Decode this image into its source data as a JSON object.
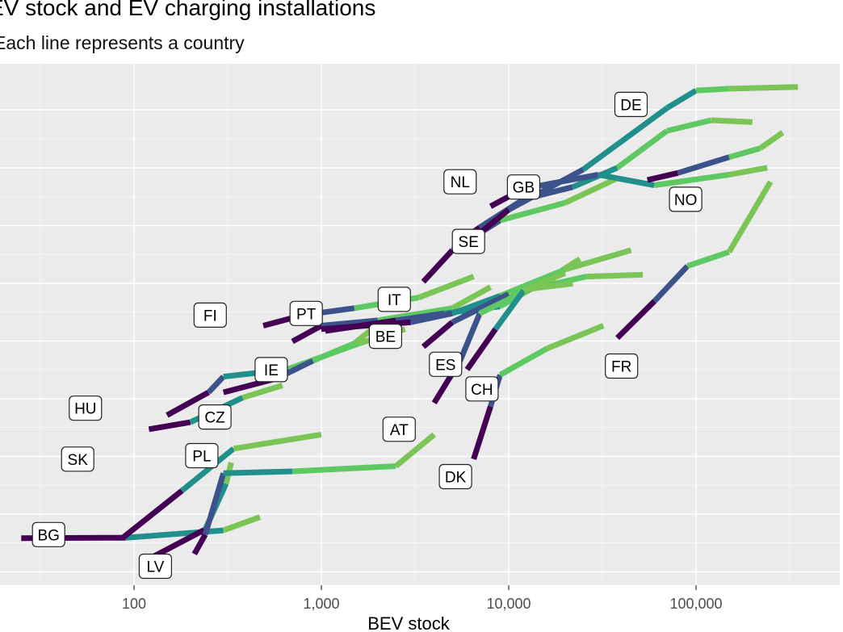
{
  "title": "EV stock and EV charging installations",
  "subtitle": "Each line represents a country",
  "chart_data": {
    "type": "line",
    "title": "EV stock and EV charging installations",
    "subtitle": "Each line represents a country",
    "xlabel": "BEV stock",
    "ylabel": "",
    "x_scale": "log10",
    "xlim": [
      19,
      600000
    ],
    "x_ticks": [
      100,
      1000,
      10000,
      100000
    ],
    "x_tick_labels": [
      "100",
      "1,000",
      "10,000",
      "100,000"
    ],
    "y_tick_labels": [],
    "grid": true,
    "legend": "none",
    "color_scale": [
      "#440154",
      "#3b528b",
      "#21908c",
      "#5ec962",
      "#7ac555"
    ],
    "series": [
      {
        "name": "BG",
        "points": [
          [
            25,
            0.95
          ],
          [
            90,
            0.96
          ],
          [
            300,
            1.17
          ],
          [
            470,
            1.55
          ]
        ]
      },
      {
        "name": "LV",
        "points": [
          [
            110,
            0.25
          ],
          [
            240,
            1.2
          ],
          [
            310,
            2.5
          ],
          [
            330,
            3.1
          ]
        ]
      },
      {
        "name": "PL",
        "points": [
          [
            210,
            0.5
          ],
          [
            240,
            1.05
          ],
          [
            300,
            2.8
          ],
          [
            700,
            2.85
          ],
          [
            2500,
            3.0
          ],
          [
            4000,
            3.9
          ]
        ]
      },
      {
        "name": "SK",
        "points": [
          [
            88,
            0.98
          ],
          [
            180,
            2.3
          ],
          [
            340,
            3.5
          ],
          [
            1000,
            3.9
          ]
        ]
      },
      {
        "name": "HU",
        "points": [
          [
            120,
            4.05
          ],
          [
            200,
            4.25
          ],
          [
            380,
            4.95
          ],
          [
            620,
            5.3
          ]
        ]
      },
      {
        "name": "CZ",
        "points": [
          [
            150,
            4.45
          ],
          [
            250,
            5.1
          ],
          [
            300,
            5.55
          ],
          [
            650,
            5.75
          ],
          [
            1600,
            6.5
          ],
          [
            2800,
            6.9
          ]
        ]
      },
      {
        "name": "IE",
        "points": [
          [
            300,
            5.1
          ],
          [
            580,
            5.5
          ],
          [
            900,
            6.0
          ],
          [
            1500,
            6.5
          ],
          [
            2200,
            7.2
          ]
        ]
      },
      {
        "name": "FI",
        "points": [
          [
            490,
            7.0
          ],
          [
            800,
            7.3
          ],
          [
            1500,
            7.5
          ],
          [
            3300,
            7.8
          ],
          [
            6500,
            8.4
          ]
        ]
      },
      {
        "name": "PT",
        "points": [
          [
            700,
            6.55
          ],
          [
            1000,
            7.0
          ],
          [
            2000,
            7.15
          ],
          [
            5000,
            7.5
          ],
          [
            8000,
            8.1
          ]
        ]
      },
      {
        "name": "BE",
        "points": [
          [
            1050,
            6.85
          ],
          [
            2500,
            7.15
          ],
          [
            4500,
            7.35
          ],
          [
            9000,
            7.55
          ],
          [
            16000,
            8.3
          ],
          [
            24000,
            8.9
          ]
        ]
      },
      {
        "name": "IT",
        "points": [
          [
            1000,
            6.9
          ],
          [
            3000,
            7.1
          ],
          [
            5000,
            7.35
          ],
          [
            9000,
            7.85
          ],
          [
            20000,
            8.6
          ],
          [
            45000,
            9.15
          ]
        ]
      },
      {
        "name": "ES",
        "points": [
          [
            3500,
            6.4
          ],
          [
            5000,
            7.1
          ],
          [
            10000,
            7.9
          ],
          [
            26000,
            8.4
          ],
          [
            52000,
            8.45
          ]
        ]
      },
      {
        "name": "AT",
        "points": [
          [
            4000,
            4.8
          ],
          [
            5500,
            6.0
          ],
          [
            7000,
            7.35
          ],
          [
            13000,
            8.05
          ],
          [
            22000,
            8.2
          ]
        ]
      },
      {
        "name": "SE",
        "points": [
          [
            3500,
            8.25
          ],
          [
            5000,
            9.15
          ],
          [
            9000,
            10.0
          ],
          [
            20000,
            10.5
          ],
          [
            38000,
            11.2
          ]
        ]
      },
      {
        "name": "NL",
        "points": [
          [
            5200,
            9.3
          ],
          [
            7000,
            9.8
          ],
          [
            12000,
            10.6
          ],
          [
            22000,
            10.95
          ],
          [
            38000,
            11.5
          ],
          [
            70000,
            12.55
          ],
          [
            120000,
            12.85
          ],
          [
            200000,
            12.8
          ]
        ]
      },
      {
        "name": "GB",
        "points": [
          [
            8000,
            10.4
          ],
          [
            12000,
            10.9
          ],
          [
            30000,
            11.3
          ],
          [
            60000,
            11.0
          ],
          [
            150000,
            11.3
          ],
          [
            240000,
            11.5
          ]
        ]
      },
      {
        "name": "DE",
        "points": [
          [
            6500,
            9.5
          ],
          [
            10000,
            10.3
          ],
          [
            25000,
            11.45
          ],
          [
            70000,
            13.2
          ],
          [
            100000,
            13.7
          ],
          [
            150000,
            13.75
          ],
          [
            350000,
            13.8
          ]
        ]
      },
      {
        "name": "NO",
        "points": [
          [
            55000,
            11.15
          ],
          [
            80000,
            11.35
          ],
          [
            150000,
            11.8
          ],
          [
            220000,
            12.05
          ],
          [
            290000,
            12.5
          ]
        ]
      },
      {
        "name": "CH",
        "points": [
          [
            6500,
            3.2
          ],
          [
            8000,
            4.7
          ],
          [
            9000,
            5.6
          ],
          [
            16000,
            6.35
          ],
          [
            32000,
            7.0
          ]
        ]
      },
      {
        "name": "DK",
        "points": [
          [
            6000,
            5.75
          ],
          [
            8500,
            6.9
          ],
          [
            12000,
            8.0
          ],
          [
            20000,
            8.5
          ]
        ]
      },
      {
        "name": "FR",
        "points": [
          [
            38000,
            6.65
          ],
          [
            60000,
            7.7
          ],
          [
            90000,
            8.7
          ],
          [
            150000,
            9.1
          ],
          [
            250000,
            11.1
          ]
        ]
      }
    ],
    "labels": [
      {
        "text": "BG",
        "x": 35,
        "y": 1.05
      },
      {
        "text": "LV",
        "x": 130,
        "y": 0.15
      },
      {
        "text": "PL",
        "x": 230,
        "y": 3.3
      },
      {
        "text": "SK",
        "x": 50,
        "y": 3.2
      },
      {
        "text": "HU",
        "x": 55,
        "y": 4.65
      },
      {
        "text": "CZ",
        "x": 270,
        "y": 4.4
      },
      {
        "text": "IE",
        "x": 540,
        "y": 5.75
      },
      {
        "text": "FI",
        "x": 255,
        "y": 7.3
      },
      {
        "text": "PT",
        "x": 830,
        "y": 7.35
      },
      {
        "text": "BE",
        "x": 2200,
        "y": 6.7
      },
      {
        "text": "IT",
        "x": 2450,
        "y": 7.75
      },
      {
        "text": "ES",
        "x": 4600,
        "y": 5.9
      },
      {
        "text": "AT",
        "x": 2600,
        "y": 4.05
      },
      {
        "text": "SE",
        "x": 6100,
        "y": 9.4
      },
      {
        "text": "NL",
        "x": 5500,
        "y": 11.1
      },
      {
        "text": "GB",
        "x": 12000,
        "y": 10.95
      },
      {
        "text": "DE",
        "x": 45000,
        "y": 13.3
      },
      {
        "text": "NO",
        "x": 88000,
        "y": 10.6
      },
      {
        "text": "CH",
        "x": 7200,
        "y": 5.2
      },
      {
        "text": "DK",
        "x": 5200,
        "y": 2.7
      },
      {
        "text": "FR",
        "x": 40000,
        "y": 5.85
      }
    ]
  }
}
